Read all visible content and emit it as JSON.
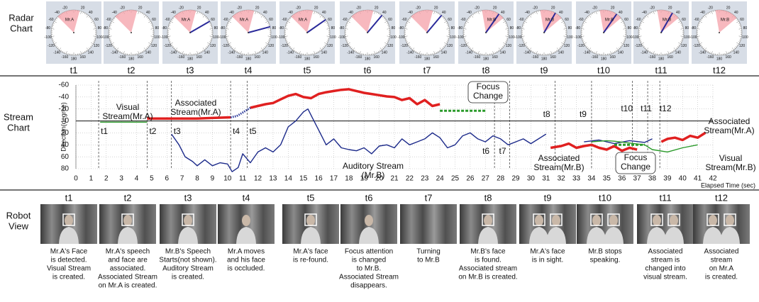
{
  "row_titles": {
    "radar": [
      "Radar",
      "Chart"
    ],
    "stream": [
      "Stream",
      "Chart"
    ],
    "robot": [
      "Robot",
      "View"
    ]
  },
  "radar": {
    "dial_ticks": [
      -160,
      -140,
      -120,
      -100,
      -80,
      -60,
      -40,
      -20,
      20,
      40,
      60,
      80,
      100,
      120,
      140,
      160,
      180
    ],
    "panels": [
      {
        "label": "t1",
        "target": "Mr.A",
        "view_center": -15,
        "sound_dir": null
      },
      {
        "label": "t2",
        "target": null,
        "view_center": -15,
        "sound_dir": null
      },
      {
        "label": "t3",
        "target": "Mr.A",
        "view_center": -15,
        "sound_dir": 60
      },
      {
        "label": "t4",
        "target": "Mr.A",
        "view_center": -15,
        "sound_dir": 75
      },
      {
        "label": "t5",
        "target": "Mr.A",
        "view_center": -15,
        "sound_dir": 55
      },
      {
        "label": "t6",
        "target": null,
        "view_center": -15,
        "sound_dir": 40
      },
      {
        "label": "t7",
        "target": null,
        "view_center": -15,
        "sound_dir": 40
      },
      {
        "label": "t8",
        "target": "Mr.B",
        "view_center": 20,
        "sound_dir": 35
      },
      {
        "label": "t9",
        "target": "Mr.B",
        "view_center": 20,
        "sound_dir": 30
      },
      {
        "label": "t10",
        "target": "Mr.B",
        "view_center": 20,
        "sound_dir": 35
      },
      {
        "label": "t11",
        "target": "Mr.B",
        "view_center": 20,
        "sound_dir": 30
      },
      {
        "label": "t12",
        "target": "Mr.B",
        "view_center": 20,
        "sound_dir": null
      }
    ]
  },
  "chart_data": {
    "type": "line",
    "y_label": "Direction(degree)",
    "x_label": "Elapsed Time (sec)",
    "xlim": [
      0,
      42
    ],
    "xticks": [
      0,
      1,
      2,
      3,
      4,
      5,
      6,
      7,
      8,
      9,
      10,
      11,
      12,
      13,
      14,
      15,
      16,
      17,
      18,
      19,
      20,
      21,
      22,
      23,
      24,
      25,
      26,
      27,
      28,
      29,
      30,
      31,
      32,
      33,
      34,
      35,
      36,
      37,
      38,
      39,
      40,
      41,
      42
    ],
    "ylim": [
      -60,
      80
    ],
    "y_inverted": true,
    "yticks": [
      -60,
      -40,
      -20,
      0,
      20,
      40,
      60,
      80
    ],
    "grid": true,
    "series": [
      {
        "color": "#2a9a2a",
        "style": "solid",
        "x": [
          1.6,
          2,
          3,
          4,
          4.7
        ],
        "values": [
          2,
          2,
          2,
          2,
          2
        ]
      },
      {
        "color": "#e02020",
        "style": "solid",
        "x": [
          4.7,
          6,
          7,
          8,
          9,
          10.2,
          10.8,
          11.5,
          12,
          12.5,
          13,
          13.5,
          14,
          14.5,
          15,
          15.5,
          16,
          16.5,
          17,
          17.5,
          18,
          18.5,
          19,
          19.5,
          20,
          20.5,
          21,
          21.5,
          22,
          22.5,
          23,
          23.5,
          24
        ],
        "values": [
          -4,
          -4,
          -4,
          -4,
          -5,
          -6,
          null,
          -22,
          -25,
          -28,
          -30,
          -36,
          -42,
          -45,
          -40,
          -38,
          -45,
          -48,
          -50,
          -52,
          -53,
          -50,
          -47,
          -45,
          -43,
          -41,
          -40,
          -35,
          -38,
          -28,
          -35,
          -25,
          -28
        ]
      },
      {
        "color": "#2a3a9a",
        "style": "dotted",
        "x": [
          10.2,
          10.6,
          11,
          11.5
        ],
        "values": [
          -6,
          -8,
          -14,
          -22
        ]
      },
      {
        "color": "#2a9a2a",
        "style": "dashed",
        "x": [
          24,
          25,
          26,
          27
        ],
        "values": [
          -17,
          -17,
          -17,
          -17
        ]
      },
      {
        "color": "#1c2a8a",
        "style": "solid",
        "x": [
          6.3,
          6.8,
          7.2,
          7.7,
          8,
          8.5,
          9,
          9.5,
          10,
          10.3,
          10.7,
          11,
          11.5,
          12,
          12.5,
          13,
          13.5,
          14,
          14.5,
          15,
          15.3,
          15.6,
          16,
          16.5,
          17,
          17.5,
          18,
          18.5,
          19,
          19.5,
          20,
          20.5,
          21,
          21.5,
          22,
          22.5,
          23,
          23.5,
          24,
          24.5,
          25,
          25.5,
          26,
          26.5,
          27,
          27.5,
          28,
          28.5,
          29,
          29.5,
          30,
          30.5,
          31
        ],
        "values": [
          22,
          40,
          60,
          68,
          75,
          65,
          75,
          70,
          72,
          85,
          78,
          55,
          70,
          52,
          45,
          52,
          40,
          10,
          0,
          -15,
          -20,
          -5,
          15,
          40,
          30,
          45,
          48,
          50,
          45,
          55,
          42,
          40,
          45,
          30,
          40,
          35,
          30,
          20,
          28,
          45,
          40,
          25,
          20,
          30,
          35,
          25,
          30,
          40,
          35,
          30,
          38,
          30,
          22
        ]
      },
      {
        "color": "#e02020",
        "style": "solid",
        "x": [
          31.3,
          32,
          32.5,
          33,
          33.5,
          34,
          34.5,
          35,
          35.5,
          36,
          36.5,
          37
        ],
        "values": [
          45,
          42,
          38,
          45,
          42,
          40,
          45,
          48,
          42,
          50,
          45,
          48
        ]
      },
      {
        "color": "#1c2a8a",
        "style": "solid",
        "x": [
          33.5,
          34.5,
          35.5,
          36.5,
          37.5,
          38
        ],
        "values": [
          35,
          32,
          38,
          33,
          36,
          30
        ]
      },
      {
        "color": "#2a9a2a",
        "style": "solid",
        "x": [
          34,
          35,
          35.5,
          37.5,
          38,
          39,
          40,
          41
        ],
        "values": [
          35,
          33,
          34,
          40,
          48,
          52,
          45,
          40
        ]
      },
      {
        "color": "#2a9a2a",
        "style": "dashed",
        "x": [
          35.5,
          36.5,
          37.5
        ],
        "values": [
          40,
          40,
          40
        ]
      },
      {
        "color": "#e02020",
        "style": "solid",
        "x": [
          38.6,
          39,
          39.5,
          40,
          40.5,
          41,
          41.5
        ],
        "values": [
          35,
          30,
          28,
          32,
          25,
          28,
          20
        ]
      }
    ],
    "markers": [
      {
        "label": "t1",
        "x": 1.5
      },
      {
        "label": "t2",
        "x": 4.7
      },
      {
        "label": "t3",
        "x": 6.3
      },
      {
        "label": "t4",
        "x": 10.2
      },
      {
        "label": "t5",
        "x": 11.3
      },
      {
        "label": "t6",
        "x": 27.6
      },
      {
        "label": "t7",
        "x": 28.6
      },
      {
        "label": "t8",
        "x": 31.6
      },
      {
        "label": "t9",
        "x": 34
      },
      {
        "label": "t10",
        "x": 36.7
      },
      {
        "label": "t11",
        "x": 37.7
      },
      {
        "label": "t12",
        "x": 38.5
      }
    ],
    "annotations": [
      [
        "Visual",
        "Stream(Mr.A)"
      ],
      [
        "Associated",
        "Stream(Mr.A)"
      ],
      [
        "Focus",
        "Change"
      ],
      [
        "Auditory Stream",
        "(Mr.B)"
      ],
      [
        "Associated",
        "Stream(Mr.B)"
      ],
      [
        "Focus",
        "Change"
      ],
      [
        "Associated",
        "Stream(Mr.A)"
      ],
      [
        "Visual",
        "Stream(Mr.B)"
      ]
    ]
  },
  "robot_view": {
    "panels": [
      {
        "label": "t1",
        "caption": [
          "Mr.A's Face",
          "is detected.",
          "Visual Stream",
          "is created."
        ]
      },
      {
        "label": "t2",
        "caption": [
          "Mr.A's speech",
          "and face are",
          "associated.",
          "Associated Stream",
          "on Mr.A is created."
        ]
      },
      {
        "label": "t3",
        "caption": [
          "Mr.B's Speech",
          "Starts(not shown).",
          "Auditory Stream",
          "is created."
        ]
      },
      {
        "label": "t4",
        "caption": [
          "Mr.A moves",
          "and his face",
          "is occluded."
        ]
      },
      {
        "label": "t5",
        "caption": [
          "Mr.A's face",
          "is re-found."
        ]
      },
      {
        "label": "t6",
        "caption": [
          "Focus attention",
          "is changed",
          "to Mr.B.",
          "Associated Stream",
          "disappears."
        ]
      },
      {
        "label": "t7",
        "caption": [
          "Turning",
          "to Mr.B"
        ]
      },
      {
        "label": "t8",
        "caption": [
          "Mr.B's face",
          "is found.",
          "Associated stream",
          "on Mr.B is created."
        ]
      },
      {
        "label": "t9",
        "caption": [
          "Mr.A's face",
          "is in sight."
        ]
      },
      {
        "label": "t10",
        "caption": [
          "Mr.B stops",
          "speaking."
        ]
      },
      {
        "label": "t11",
        "caption": [
          "Associated",
          "stream is",
          "changed into",
          "visual stream."
        ]
      },
      {
        "label": "t12",
        "caption": [
          "Associated",
          "stream",
          "on Mr.A",
          "is created."
        ]
      }
    ]
  }
}
